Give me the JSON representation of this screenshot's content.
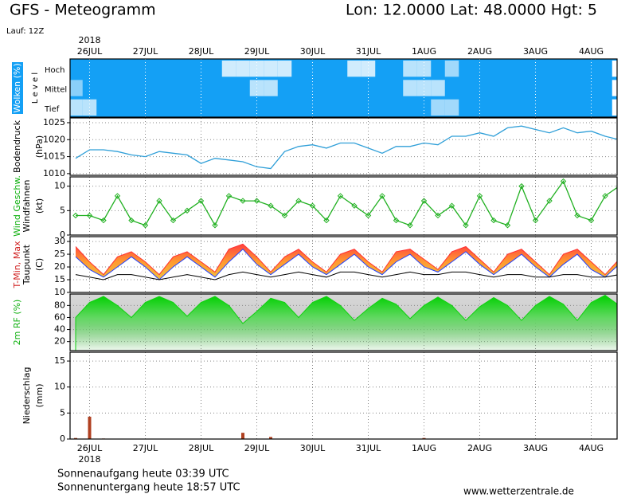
{
  "title": "GFS - Meteogramm",
  "location": "Lon: 12.0000 Lat: 48.0000 Hgt: 5",
  "run": "Lauf: 12Z",
  "sunrise": "Sonnenaufgang heute 03:39 UTC",
  "sunset": "Sonnenuntergang heute 18:57 UTC",
  "source": "www.wetterzentrale.de",
  "chart_data": [
    {
      "type": "heatmap",
      "year": "2018",
      "categories": [
        null,
        "26JUL",
        null,
        null,
        null,
        "27JUL",
        null,
        null,
        null,
        "28JUL",
        null,
        null,
        null,
        "29JUL",
        null,
        null,
        null,
        "30JUL",
        null,
        null,
        null,
        "31JUL",
        null,
        null,
        null,
        "1AUG",
        null,
        null,
        null,
        "2AUG",
        null,
        null,
        null,
        "3AUG",
        null,
        null,
        null,
        "4AUG",
        null,
        null
      ],
      "ylabel": [
        {
          "text": "Wolken (%)",
          "color": "#ffffff"
        }
      ],
      "level_label": "L e v e l",
      "color": "#14a0f5",
      "series": [
        {
          "name": "Hoch",
          "values": [
            100,
            100,
            100,
            100,
            100,
            100,
            100,
            100,
            100,
            100,
            100,
            20,
            20,
            20,
            20,
            20,
            100,
            100,
            100,
            100,
            20,
            20,
            100,
            100,
            30,
            30,
            100,
            40,
            100,
            100,
            100,
            100,
            100,
            100,
            100,
            100,
            100,
            100,
            100,
            0
          ]
        },
        {
          "name": "Mittel",
          "values": [
            50,
            100,
            100,
            100,
            100,
            100,
            100,
            100,
            100,
            100,
            100,
            100,
            100,
            30,
            30,
            100,
            100,
            100,
            100,
            100,
            100,
            100,
            100,
            100,
            30,
            30,
            30,
            100,
            100,
            100,
            100,
            100,
            100,
            100,
            100,
            100,
            100,
            100,
            100,
            0
          ]
        },
        {
          "name": "Tief",
          "values": [
            30,
            30,
            100,
            100,
            100,
            100,
            100,
            100,
            100,
            100,
            100,
            100,
            100,
            100,
            100,
            100,
            100,
            100,
            100,
            100,
            100,
            100,
            100,
            100,
            100,
            100,
            40,
            40,
            100,
            100,
            100,
            100,
            100,
            100,
            100,
            100,
            100,
            100,
            100,
            0
          ]
        }
      ]
    },
    {
      "type": "line",
      "ylabel": [
        {
          "text": "Bodendruck",
          "color": "#000000"
        },
        {
          "text": "(hPa)",
          "color": "#000000"
        }
      ],
      "ylim": [
        1009.5,
        1026.4
      ],
      "yticks": [
        1010,
        1015,
        1020,
        1025
      ],
      "grid": true,
      "color": "#2f9fd8",
      "values": [
        1014.5,
        1017,
        1017,
        1016.5,
        1015.5,
        1015,
        1016.5,
        1016,
        1015.5,
        1013,
        1014.5,
        1014,
        1013.5,
        1012,
        1011.5,
        1016.5,
        1018,
        1018.5,
        1017.5,
        1019,
        1019,
        1017.5,
        1016,
        1018,
        1018,
        1019,
        1018.5,
        1021,
        1021,
        1022,
        1021,
        1023.5,
        1024,
        1023,
        1022,
        1023.5,
        1022,
        1022.5,
        1021,
        1020
      ]
    },
    {
      "type": "line",
      "markers": true,
      "ylabel": [
        {
          "text": "Wind Geschw.",
          "color": "#10b010"
        },
        {
          "text": "Windfahnen",
          "color": "#000000"
        },
        {
          "text": "(kt)",
          "color": "#000000"
        }
      ],
      "ylim": [
        0,
        11.9
      ],
      "yticks": [
        0,
        5,
        10
      ],
      "grid": true,
      "color": "#20b020",
      "values": [
        4,
        4,
        3,
        8,
        3,
        2,
        7,
        3,
        5,
        7,
        2,
        8,
        7,
        7,
        6,
        4,
        7,
        6,
        3,
        8,
        6,
        4,
        8,
        3,
        2,
        7,
        4,
        6,
        2,
        8,
        3,
        2,
        10,
        3,
        7,
        11,
        4,
        3,
        8,
        10
      ]
    },
    {
      "type": "band",
      "ylabel": [
        {
          "text": "T-Min, Max",
          "color": "#d02020"
        },
        {
          "text": "Taupunkt",
          "color": "#000000"
        },
        {
          "text": "(C)",
          "color": "#000000"
        }
      ],
      "ylim": [
        10,
        31.9
      ],
      "yticks": [
        10,
        15,
        20,
        25,
        30
      ],
      "grid": true,
      "series": [
        {
          "color": "#ff3030",
          "values": [
            28,
            22,
            17,
            24,
            26,
            22,
            17,
            24,
            26,
            22,
            18,
            27,
            29,
            24,
            18,
            24,
            27,
            22,
            18,
            25,
            27,
            22,
            18,
            26,
            27,
            23,
            19,
            26,
            28,
            23,
            18,
            25,
            27,
            22,
            17,
            25,
            27,
            22,
            17,
            23
          ]
        },
        {
          "color": "#2040ff",
          "values": [
            24,
            19,
            16,
            20,
            24,
            20,
            15,
            20,
            24,
            20,
            16,
            22,
            27,
            21,
            17,
            21,
            25,
            20,
            17,
            21,
            25,
            20,
            17,
            22,
            25,
            20,
            18,
            22,
            26,
            21,
            17,
            21,
            25,
            20,
            16,
            21,
            25,
            19,
            16,
            21
          ]
        },
        {
          "name": "Taupunkt",
          "color": "#000000",
          "values": [
            17,
            16,
            15,
            17,
            17,
            16,
            15,
            16,
            17,
            16,
            15,
            17,
            18,
            17,
            16,
            17,
            18,
            17,
            16,
            18,
            18,
            17,
            16,
            17,
            18,
            17,
            17,
            18,
            18,
            17,
            16,
            17,
            17,
            16,
            16,
            17,
            17,
            16,
            16,
            17
          ]
        }
      ]
    },
    {
      "type": "area",
      "ylabel": [
        {
          "text": "2m RF (%)",
          "color": "#10b010"
        }
      ],
      "ylim": [
        5,
        99
      ],
      "yticks": [
        20,
        40,
        60,
        80
      ],
      "grid": true,
      "color": "#10d010",
      "values": [
        60,
        85,
        95,
        80,
        60,
        85,
        95,
        85,
        62,
        85,
        95,
        80,
        50,
        70,
        92,
        85,
        60,
        85,
        95,
        80,
        55,
        75,
        92,
        82,
        58,
        80,
        94,
        80,
        55,
        78,
        93,
        80,
        55,
        80,
        95,
        82,
        55,
        85,
        97,
        80
      ]
    },
    {
      "type": "bar",
      "year": "2018",
      "categories": [
        null,
        "26JUL",
        null,
        null,
        null,
        "27JUL",
        null,
        null,
        null,
        "28JUL",
        null,
        null,
        null,
        "29JUL",
        null,
        null,
        null,
        "30JUL",
        null,
        null,
        null,
        "31JUL",
        null,
        null,
        null,
        "1AUG",
        null,
        null,
        null,
        "2AUG",
        null,
        null,
        null,
        "3AUG",
        null,
        null,
        null,
        "4AUG",
        null,
        null
      ],
      "ylabel": [
        {
          "text": "Niederschlag",
          "color": "#000000"
        },
        {
          "text": "(mm)",
          "color": "#000000"
        }
      ],
      "ylim": [
        0,
        16.7
      ],
      "yticks": [
        0,
        5,
        10,
        15
      ],
      "grid": true,
      "color": "#b04020",
      "values": [
        0.2,
        4.3,
        0.1,
        0,
        0,
        0,
        0,
        0,
        0,
        0,
        0,
        0,
        1.2,
        0,
        0.4,
        0,
        0,
        0,
        0,
        0,
        0,
        0,
        0,
        0,
        0,
        0.2,
        0,
        0,
        0,
        0,
        0,
        0,
        0,
        0,
        0,
        0,
        0,
        0,
        0,
        0
      ]
    }
  ]
}
